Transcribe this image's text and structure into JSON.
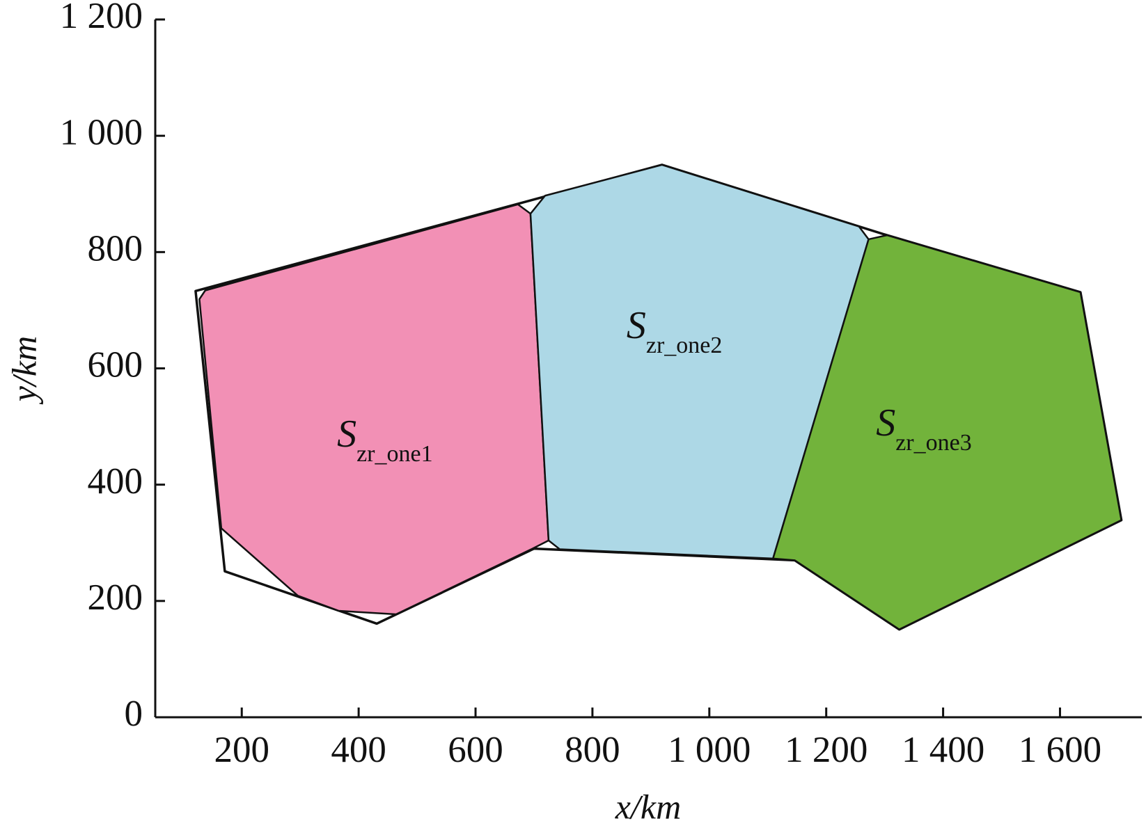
{
  "chart_data": {
    "type": "polygon",
    "xlabel": "x/km",
    "ylabel": "y/km",
    "xlim": [
      52,
      1740
    ],
    "ylim": [
      0,
      1200
    ],
    "xticks": [
      200,
      400,
      600,
      800,
      {
        "value": 1000,
        "label": "1 000"
      },
      {
        "value": 1200,
        "label": "1 200"
      },
      {
        "value": 1400,
        "label": "1 400"
      },
      {
        "value": 1600,
        "label": "1 600"
      }
    ],
    "yticks": [
      0,
      200,
      400,
      600,
      800,
      {
        "value": 1000,
        "label": "1 000"
      },
      {
        "value": 1200,
        "label": "1 200"
      }
    ],
    "boundary": {
      "color": "#ffffff",
      "x": [
        121,
        919,
        1304,
        1635,
        1705,
        1325,
        1146,
        700,
        431,
        171
      ],
      "y": [
        733,
        950,
        829,
        731,
        339,
        151,
        270,
        290,
        161,
        251
      ]
    },
    "series": [
      {
        "name": "S",
        "subscript": "zr_one1",
        "color": "#f290b5",
        "x": [
          127.5,
          137.5,
          672.5,
          694,
          725,
          697.5,
          464,
          366,
          296,
          165
        ],
        "y": [
          719,
          734,
          882,
          866,
          304,
          290,
          177,
          183,
          209,
          325
        ]
      },
      {
        "name": "S",
        "subscript": "zr_one2",
        "color": "#add8e6",
        "x": [
          694,
          719,
          919,
          1256,
          1272.5,
          1109,
          744,
          725
        ],
        "y": [
          866,
          897,
          950,
          844,
          822,
          273,
          289,
          304
        ]
      },
      {
        "name": "S",
        "subscript": "zr_one3",
        "color": "#72b33b",
        "x": [
          1272.5,
          1304,
          1635,
          1705,
          1325,
          1146,
          1109
        ],
        "y": [
          822,
          829,
          731,
          339,
          151,
          270,
          273
        ]
      }
    ]
  }
}
